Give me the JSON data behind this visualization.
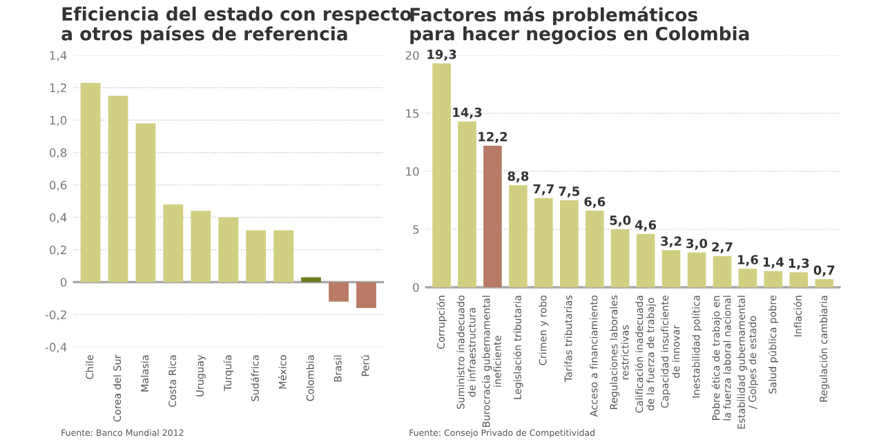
{
  "chart_data": [
    {
      "type": "bar",
      "title": "Eficiencia del estado con respecto\na otros países de referencia",
      "categories": [
        "Chile",
        "Corea del Sur",
        "Malasia",
        "Costa Rica",
        "Uruguay",
        "Turquía",
        "Sudáfrica",
        "México",
        "Colombia",
        "Brasil",
        "Perú"
      ],
      "values": [
        1.23,
        1.15,
        0.98,
        0.48,
        0.44,
        0.4,
        0.32,
        0.32,
        0.03,
        -0.12,
        -0.16
      ],
      "colors": [
        "#d0cf82",
        "#d0cf82",
        "#d0cf82",
        "#d0cf82",
        "#d0cf82",
        "#d0cf82",
        "#d0cf82",
        "#d0cf82",
        "#6b7d1f",
        "#b97b66",
        "#b97b66"
      ],
      "ylim": [
        -0.4,
        1.4
      ],
      "yticks": [
        {
          "value": -0.4,
          "label": "-0,4"
        },
        {
          "value": -0.2,
          "label": "-0,2"
        },
        0,
        {
          "value": 0.2,
          "label": "0,2"
        },
        {
          "value": 0.4,
          "label": "0,4"
        },
        {
          "value": 0.6,
          "label": "0,6"
        },
        {
          "value": 0.8,
          "label": "0,8"
        },
        {
          "value": 1.0,
          "label": "1,0"
        },
        {
          "value": 1.2,
          "label": "1,2"
        },
        {
          "value": 1.4,
          "label": "1,4"
        }
      ],
      "grid": "y",
      "annotations": [
        "Fuente: Banco Mundial 2012"
      ]
    },
    {
      "type": "bar",
      "title": "Factores más problemáticos\npara hacer negocios en Colombia",
      "categories": [
        "Corrupción",
        "Suministro inadecuado\nde infraestructura",
        "Burocracia gubernamental\nineficiente",
        "Legislación tributaria",
        "Crimen y robo",
        "Tarifas tributarias",
        "Acceso a financiamiento",
        "Regulaciones laborales\nrestrictivas",
        "Calificación inadecuada\nde la fuerza de trabajo",
        "Capacidad insuficiente\nde innovar",
        "Inestabilidad política",
        "Pobre ética de trabajo en\nla fuerza laboral nacional",
        "Estabilidad gubernamental\n/ Golpes de estado",
        "Salud pública pobre",
        "Inflación",
        "Regulación cambiaria"
      ],
      "values": [
        19.3,
        14.3,
        12.2,
        8.8,
        7.7,
        7.5,
        6.6,
        5.0,
        4.6,
        3.2,
        3.0,
        2.7,
        1.6,
        1.4,
        1.3,
        0.7
      ],
      "value_labels": [
        "19,3",
        "14,3",
        "12,2",
        "8,8",
        "7,7",
        "7,5",
        "6,6",
        "5,0",
        "4,6",
        "3,2",
        "3,0",
        "2,7",
        "1,6",
        "1,4",
        "1,3",
        "0,7"
      ],
      "colors": [
        "#d0cf82",
        "#d0cf82",
        "#b67a66",
        "#d0cf82",
        "#d0cf82",
        "#d0cf82",
        "#d0cf82",
        "#d0cf82",
        "#d0cf82",
        "#d0cf82",
        "#d0cf82",
        "#d0cf82",
        "#d0cf82",
        "#d0cf82",
        "#d0cf82",
        "#d0cf82"
      ],
      "ylim": [
        0,
        20
      ],
      "yticks": [
        0,
        5,
        10,
        15,
        20
      ],
      "grid": "y",
      "annotations": [
        "Fuente: Consejo Privado de Competitividad"
      ]
    }
  ]
}
